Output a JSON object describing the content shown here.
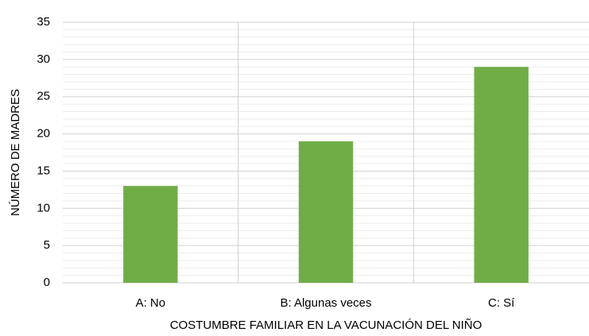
{
  "chart_data": {
    "type": "bar",
    "x_label": "COSTUMBRE FAMILIAR EN LA VACUNACIÓN DEL NIÑO",
    "y_label": "NÚMERO DE MADRES",
    "categories": [
      "A: No",
      "B: Algunas veces",
      "C: Sí"
    ],
    "values": [
      13,
      19,
      29
    ],
    "color": "#70ad47",
    "ylim": [
      0,
      35
    ],
    "yticks": [
      0,
      5,
      10,
      15,
      20,
      25,
      30,
      35
    ],
    "minor_yticks": [
      1,
      2,
      3,
      4,
      6,
      7,
      8,
      9,
      11,
      12,
      13,
      14,
      16,
      17,
      18,
      19,
      21,
      22,
      23,
      24,
      26,
      27,
      28,
      29,
      31,
      32,
      33,
      34
    ],
    "grid": true
  }
}
